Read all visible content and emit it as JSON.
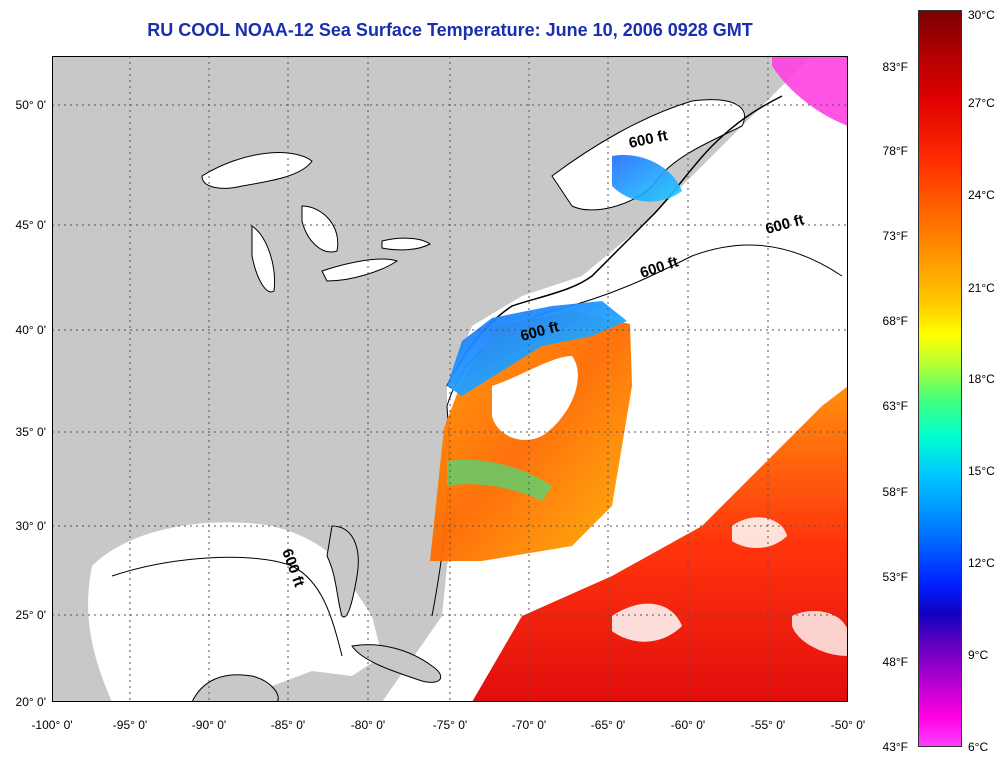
{
  "title": "RU COOL  NOAA-12  Sea Surface Temperature:  June 10, 2006 0928 GMT",
  "lat_labels": [
    "50° 0'",
    "45° 0'",
    "40° 0'",
    "35° 0'",
    "30° 0'",
    "25° 0'",
    "20° 0'"
  ],
  "lon_labels": [
    "-100° 0'",
    "-95° 0'",
    "-90° 0'",
    "-85° 0'",
    "-80° 0'",
    "-75° 0'",
    "-70° 0'",
    "-65° 0'",
    "-60° 0'",
    "-55° 0'",
    "-50° 0'"
  ],
  "contour_label": "600 ft",
  "scale": {
    "fahrenheit": [
      "83°F",
      "78°F",
      "73°F",
      "68°F",
      "63°F",
      "58°F",
      "53°F",
      "48°F",
      "43°F"
    ],
    "celsius": [
      "30°C",
      "27°C",
      "24°C",
      "21°C",
      "18°C",
      "15°C",
      "12°C",
      "9°C",
      "6°C"
    ]
  },
  "colors": {
    "land": "#c8c8c8",
    "ocean": "#ffffff",
    "title": "#1a2fb0"
  }
}
